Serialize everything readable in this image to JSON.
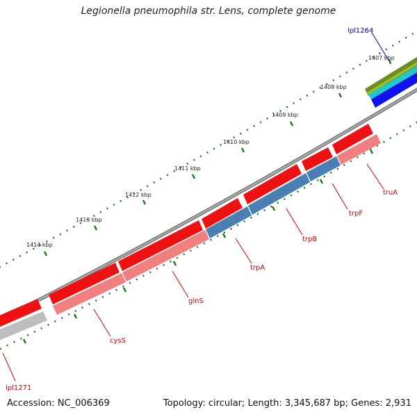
{
  "title": "Legionella pneumophila str. Lens, complete genome",
  "footer": {
    "accession": "Accession: NC_006369",
    "summary": "Topology: circular; Length: 3,345,687 bp; Genes: 2,931"
  },
  "colors": {
    "gene_cds": "#ee1111",
    "gene_forward_top": "#ff2222",
    "cds_pink": "#f08080",
    "cds_blue": "#4a7fb3",
    "backbone": "#777777",
    "ticks": "#1a7a1a",
    "gene_label": "#cc0000",
    "other_label": "#0000cc"
  },
  "ticks": [
    {
      "label": "1407 kbp"
    },
    {
      "label": "1408 kbp"
    },
    {
      "label": "1409 kbp"
    },
    {
      "label": "1410 kbp"
    },
    {
      "label": "1411 kbp"
    },
    {
      "label": "1412 kbp"
    },
    {
      "label": "1413 kbp"
    },
    {
      "label": "1414 kbp"
    }
  ],
  "genes": [
    {
      "name": "lpl1264",
      "type": "other"
    },
    {
      "name": "truA",
      "type": "gene"
    },
    {
      "name": "trpF",
      "type": "gene"
    },
    {
      "name": "trpB",
      "type": "gene"
    },
    {
      "name": "trpA",
      "type": "gene"
    },
    {
      "name": "glnS",
      "type": "gene"
    },
    {
      "name": "cysS",
      "type": "gene"
    },
    {
      "name": "lpl1271",
      "type": "gene"
    }
  ]
}
